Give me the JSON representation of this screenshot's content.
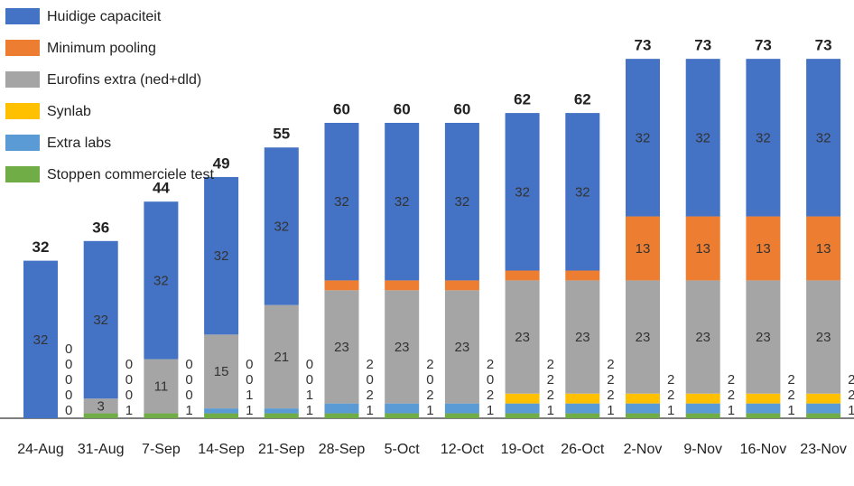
{
  "chart_data": {
    "type": "stacked_bar",
    "categories": [
      "24-Aug",
      "31-Aug",
      "7-Sep",
      "14-Sep",
      "21-Sep",
      "28-Sep",
      "5-Oct",
      "12-Oct",
      "19-Oct",
      "26-Oct",
      "2-Nov",
      "9-Nov",
      "16-Nov",
      "23-Nov"
    ],
    "totals": [
      32,
      36,
      44,
      49,
      55,
      60,
      60,
      60,
      62,
      62,
      73,
      73,
      73,
      73
    ],
    "series": [
      {
        "name": "Stoppen commerciele test",
        "color": "#70ad47",
        "values": [
          0,
          1,
          1,
          1,
          1,
          1,
          1,
          1,
          1,
          1,
          1,
          1,
          1,
          1
        ]
      },
      {
        "name": "Extra labs",
        "color": "#5b9bd5",
        "values": [
          0,
          0,
          0,
          1,
          1,
          2,
          2,
          2,
          2,
          2,
          2,
          2,
          2,
          2
        ]
      },
      {
        "name": "Synlab",
        "color": "#ffc000",
        "values": [
          0,
          0,
          0,
          0,
          0,
          0,
          0,
          0,
          2,
          2,
          2,
          2,
          2,
          2
        ]
      },
      {
        "name": "Eurofins extra (ned+dld)",
        "color": "#a5a5a5",
        "values": [
          0,
          3,
          11,
          15,
          21,
          23,
          23,
          23,
          23,
          23,
          23,
          23,
          23,
          23
        ]
      },
      {
        "name": "Minimum pooling",
        "color": "#ed7d31",
        "values": [
          0,
          0,
          0,
          0,
          0,
          2,
          2,
          2,
          2,
          2,
          13,
          13,
          13,
          13
        ]
      },
      {
        "name": "Huidige capaciteit",
        "color": "#4472c4",
        "values": [
          32,
          32,
          32,
          32,
          32,
          32,
          32,
          32,
          32,
          32,
          32,
          32,
          32,
          32
        ]
      }
    ]
  }
}
